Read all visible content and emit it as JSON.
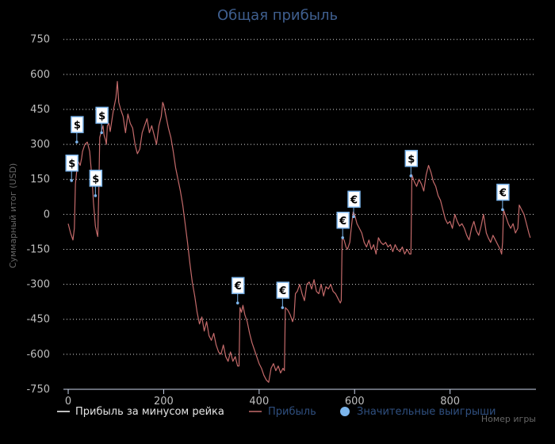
{
  "chart_data": {
    "type": "line",
    "title": "Общая прибыль",
    "xlabel": "Номер игры",
    "ylabel": "Суммарный итог (USD)",
    "xlim": [
      -10,
      980
    ],
    "ylim": [
      -750,
      800
    ],
    "xticks": [
      0,
      200,
      400,
      600,
      800
    ],
    "yticks": [
      750,
      600,
      450,
      300,
      150,
      0,
      -150,
      -300,
      -450,
      -600,
      -750
    ],
    "grid": true,
    "legend_position": "bottom",
    "series": [
      {
        "name": "Прибыль за минусом рейка",
        "color": "#ffffff",
        "values": []
      },
      {
        "name": "Прибыль",
        "color": "#c46a6a",
        "values": [
          [
            0,
            -40
          ],
          [
            5,
            -80
          ],
          [
            10,
            -110
          ],
          [
            13,
            -60
          ],
          [
            15,
            130
          ],
          [
            20,
            230
          ],
          [
            25,
            210
          ],
          [
            28,
            240
          ],
          [
            30,
            270
          ],
          [
            35,
            300
          ],
          [
            40,
            310
          ],
          [
            45,
            270
          ],
          [
            50,
            150
          ],
          [
            53,
            50
          ],
          [
            57,
            -50
          ],
          [
            60,
            -80
          ],
          [
            62,
            -95
          ],
          [
            64,
            80
          ],
          [
            66,
            330
          ],
          [
            70,
            360
          ],
          [
            73,
            380
          ],
          [
            75,
            340
          ],
          [
            78,
            320
          ],
          [
            80,
            300
          ],
          [
            82,
            380
          ],
          [
            85,
            390
          ],
          [
            88,
            355
          ],
          [
            92,
            410
          ],
          [
            95,
            450
          ],
          [
            100,
            500
          ],
          [
            103,
            570
          ],
          [
            106,
            480
          ],
          [
            110,
            450
          ],
          [
            115,
            420
          ],
          [
            120,
            350
          ],
          [
            125,
            430
          ],
          [
            130,
            390
          ],
          [
            135,
            370
          ],
          [
            140,
            300
          ],
          [
            145,
            260
          ],
          [
            150,
            280
          ],
          [
            155,
            350
          ],
          [
            160,
            380
          ],
          [
            165,
            410
          ],
          [
            170,
            350
          ],
          [
            175,
            380
          ],
          [
            180,
            340
          ],
          [
            185,
            300
          ],
          [
            190,
            380
          ],
          [
            195,
            420
          ],
          [
            198,
            480
          ],
          [
            200,
            470
          ],
          [
            205,
            420
          ],
          [
            210,
            370
          ],
          [
            215,
            330
          ],
          [
            220,
            270
          ],
          [
            225,
            200
          ],
          [
            230,
            150
          ],
          [
            235,
            100
          ],
          [
            240,
            40
          ],
          [
            245,
            -40
          ],
          [
            250,
            -120
          ],
          [
            255,
            -210
          ],
          [
            260,
            -290
          ],
          [
            265,
            -350
          ],
          [
            270,
            -420
          ],
          [
            275,
            -470
          ],
          [
            280,
            -440
          ],
          [
            285,
            -500
          ],
          [
            290,
            -460
          ],
          [
            295,
            -520
          ],
          [
            300,
            -540
          ],
          [
            305,
            -510
          ],
          [
            310,
            -560
          ],
          [
            315,
            -590
          ],
          [
            320,
            -600
          ],
          [
            325,
            -560
          ],
          [
            330,
            -610
          ],
          [
            335,
            -630
          ],
          [
            340,
            -590
          ],
          [
            345,
            -630
          ],
          [
            350,
            -610
          ],
          [
            355,
            -650
          ],
          [
            358,
            -650
          ],
          [
            360,
            -400
          ],
          [
            363,
            -420
          ],
          [
            366,
            -390
          ],
          [
            370,
            -430
          ],
          [
            375,
            -460
          ],
          [
            380,
            -510
          ],
          [
            385,
            -550
          ],
          [
            390,
            -580
          ],
          [
            395,
            -610
          ],
          [
            400,
            -640
          ],
          [
            405,
            -660
          ],
          [
            410,
            -690
          ],
          [
            415,
            -710
          ],
          [
            420,
            -720
          ],
          [
            425,
            -660
          ],
          [
            430,
            -640
          ],
          [
            435,
            -670
          ],
          [
            440,
            -650
          ],
          [
            445,
            -680
          ],
          [
            450,
            -660
          ],
          [
            453,
            -670
          ],
          [
            455,
            -400
          ],
          [
            460,
            -410
          ],
          [
            465,
            -430
          ],
          [
            470,
            -460
          ],
          [
            473,
            -440
          ],
          [
            476,
            -340
          ],
          [
            480,
            -330
          ],
          [
            485,
            -300
          ],
          [
            490,
            -340
          ],
          [
            495,
            -370
          ],
          [
            500,
            -300
          ],
          [
            505,
            -290
          ],
          [
            510,
            -320
          ],
          [
            515,
            -280
          ],
          [
            520,
            -330
          ],
          [
            525,
            -340
          ],
          [
            530,
            -300
          ],
          [
            535,
            -350
          ],
          [
            540,
            -310
          ],
          [
            545,
            -320
          ],
          [
            550,
            -300
          ],
          [
            555,
            -330
          ],
          [
            560,
            -340
          ],
          [
            565,
            -360
          ],
          [
            570,
            -380
          ],
          [
            572,
            -370
          ],
          [
            574,
            -100
          ],
          [
            578,
            -110
          ],
          [
            582,
            -140
          ],
          [
            585,
            -150
          ],
          [
            590,
            -120
          ],
          [
            593,
            -60
          ],
          [
            597,
            10
          ],
          [
            600,
            0
          ],
          [
            605,
            -40
          ],
          [
            610,
            -60
          ],
          [
            615,
            -80
          ],
          [
            620,
            -120
          ],
          [
            625,
            -140
          ],
          [
            630,
            -110
          ],
          [
            635,
            -150
          ],
          [
            640,
            -130
          ],
          [
            645,
            -170
          ],
          [
            650,
            -100
          ],
          [
            655,
            -120
          ],
          [
            660,
            -130
          ],
          [
            665,
            -120
          ],
          [
            670,
            -140
          ],
          [
            675,
            -130
          ],
          [
            680,
            -160
          ],
          [
            685,
            -130
          ],
          [
            690,
            -150
          ],
          [
            695,
            -160
          ],
          [
            700,
            -140
          ],
          [
            705,
            -170
          ],
          [
            710,
            -150
          ],
          [
            715,
            -170
          ],
          [
            718,
            -170
          ],
          [
            720,
            170
          ],
          [
            725,
            140
          ],
          [
            730,
            120
          ],
          [
            735,
            150
          ],
          [
            740,
            130
          ],
          [
            745,
            100
          ],
          [
            750,
            170
          ],
          [
            755,
            210
          ],
          [
            760,
            180
          ],
          [
            765,
            140
          ],
          [
            770,
            120
          ],
          [
            775,
            80
          ],
          [
            780,
            60
          ],
          [
            785,
            20
          ],
          [
            790,
            -20
          ],
          [
            795,
            -40
          ],
          [
            800,
            -30
          ],
          [
            805,
            -60
          ],
          [
            810,
            0
          ],
          [
            815,
            -30
          ],
          [
            820,
            -50
          ],
          [
            825,
            -40
          ],
          [
            830,
            -60
          ],
          [
            835,
            -90
          ],
          [
            840,
            -110
          ],
          [
            845,
            -60
          ],
          [
            850,
            -30
          ],
          [
            855,
            -70
          ],
          [
            860,
            -90
          ],
          [
            865,
            -50
          ],
          [
            870,
            0
          ],
          [
            873,
            -40
          ],
          [
            876,
            -80
          ],
          [
            880,
            -100
          ],
          [
            885,
            -120
          ],
          [
            890,
            -90
          ],
          [
            895,
            -110
          ],
          [
            900,
            -130
          ],
          [
            905,
            -150
          ],
          [
            908,
            -170
          ],
          [
            910,
            -120
          ],
          [
            912,
            20
          ],
          [
            917,
            -10
          ],
          [
            922,
            -40
          ],
          [
            927,
            -60
          ],
          [
            932,
            -40
          ],
          [
            937,
            -80
          ],
          [
            942,
            -60
          ],
          [
            945,
            40
          ],
          [
            950,
            20
          ],
          [
            955,
            0
          ],
          [
            960,
            -40
          ],
          [
            965,
            -80
          ],
          [
            968,
            -100
          ]
        ]
      },
      {
        "name": "Значительные выигрыши",
        "color": "#7cb5ec",
        "points": [
          {
            "x": 7,
            "y": 145,
            "label": "$"
          },
          {
            "x": 18,
            "y": 310,
            "label": "$"
          },
          {
            "x": 57,
            "y": 80,
            "label": "$"
          },
          {
            "x": 70,
            "y": 350,
            "label": "$"
          },
          {
            "x": 355,
            "y": -380,
            "label": "€"
          },
          {
            "x": 449,
            "y": -400,
            "label": "€"
          },
          {
            "x": 575,
            "y": -100,
            "label": "€"
          },
          {
            "x": 598,
            "y": -10,
            "label": "€"
          },
          {
            "x": 718,
            "y": 165,
            "label": "$"
          },
          {
            "x": 910,
            "y": 20,
            "label": "€"
          }
        ]
      }
    ]
  }
}
